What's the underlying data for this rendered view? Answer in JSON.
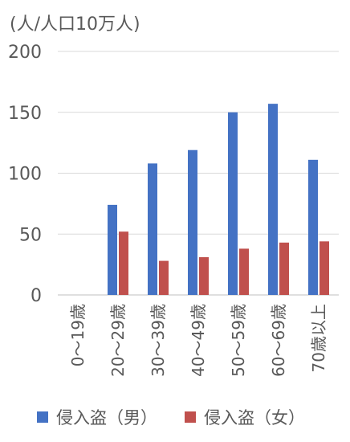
{
  "chart_data": {
    "type": "bar",
    "ylabel": "(人/人口10万人)",
    "ylim": [
      0,
      200
    ],
    "yticks": [
      0,
      50,
      100,
      150,
      200
    ],
    "grid": true,
    "legend_position": "bottom",
    "categories": [
      "0～19歳",
      "20～29歳",
      "30～39歳",
      "40～49歳",
      "50～59歳",
      "60～69歳",
      "70歳以上"
    ],
    "series": [
      {
        "name": "侵入盗（男）",
        "color": "#4472C4",
        "values": [
          0,
          74,
          108,
          119,
          150,
          157,
          111
        ]
      },
      {
        "name": "侵入盗（女）",
        "color": "#C0504D",
        "values": [
          0,
          52,
          28,
          31,
          38,
          43,
          44
        ]
      }
    ]
  }
}
